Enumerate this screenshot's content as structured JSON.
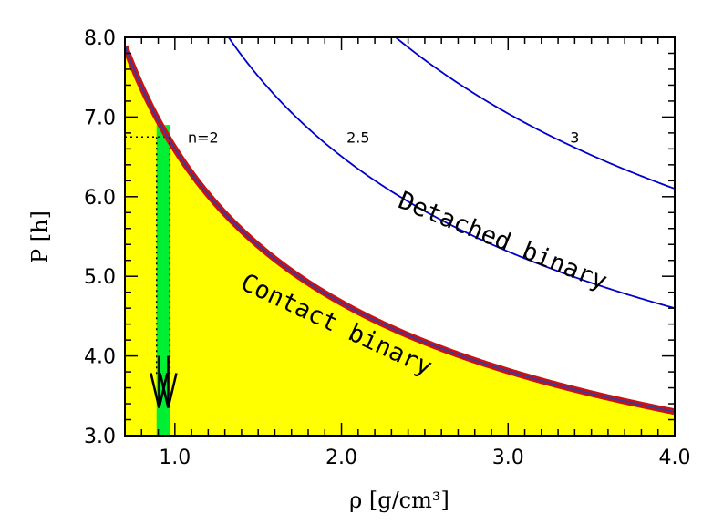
{
  "chart_data": {
    "type": "line",
    "title": "",
    "xlabel": "ρ [g/cm³]",
    "ylabel": "P [h]",
    "xlim": [
      0.7,
      4.0
    ],
    "ylim": [
      3.0,
      8.0
    ],
    "x_ticks": [
      1.0,
      2.0,
      3.0,
      4.0
    ],
    "x_tick_labels": [
      "1.0",
      "2.0",
      "3.0",
      "4.0"
    ],
    "y_ticks": [
      3.0,
      4.0,
      5.0,
      6.0,
      7.0,
      8.0
    ],
    "y_tick_labels": [
      "3.0",
      "4.0",
      "5.0",
      "6.0",
      "7.0",
      "8.0"
    ],
    "grid": false,
    "series": [
      {
        "label": "n=2",
        "P_at_rho1": 6.6,
        "exponent": -0.5,
        "color": "#cc1111",
        "style": "thick-boundary"
      },
      {
        "label": "2.5",
        "P_at_rho1": 9.2,
        "exponent": -0.5,
        "color": "#0000cc",
        "style": "line"
      },
      {
        "label": "3",
        "P_at_rho1": 12.2,
        "exponent": -0.5,
        "color": "#0000cc",
        "style": "line"
      }
    ],
    "shaded_region": {
      "name": "Contact binary",
      "color": "#ffff00",
      "below_series": "n=2"
    },
    "highlight_band": {
      "x": [
        0.89,
        0.97
      ],
      "y_top": 6.9,
      "color": "#00ee33"
    },
    "reference_line": {
      "y": 6.75,
      "x": [
        0.7,
        0.97
      ],
      "style": "dotted"
    },
    "arrows": [
      {
        "x": 0.905
      },
      {
        "x": 0.96
      }
    ],
    "annotations": [
      {
        "text": "Contact binary",
        "x": 1.95,
        "y": 4.3,
        "rotation": 25
      },
      {
        "text": "Detached binary",
        "x": 2.95,
        "y": 5.35,
        "rotation": 22
      }
    ]
  }
}
